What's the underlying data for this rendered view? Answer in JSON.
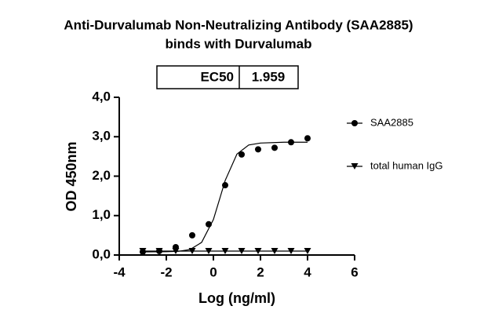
{
  "chart_data": {
    "type": "scatter",
    "title": [
      "Anti-Durvalumab Non-Neutralizing Antibody (SAA2885)",
      "binds with Durvalumab"
    ],
    "summary_table": {
      "header": "EC50",
      "value": "1.959"
    },
    "x_label": "Log (ng/ml)",
    "y_label": "OD 450nm",
    "xlim": [
      -4,
      6
    ],
    "xticks": [
      -4,
      -2,
      0,
      2,
      4,
      6
    ],
    "ylim": [
      0,
      4
    ],
    "yticks": [
      {
        "value": 0,
        "label": "0,0"
      },
      {
        "value": 1,
        "label": "1,0"
      },
      {
        "value": 2,
        "label": "2,0"
      },
      {
        "value": 3,
        "label": "3,0"
      },
      {
        "value": 4,
        "label": "4,0"
      }
    ],
    "series": [
      {
        "name": "SAA2885",
        "color": "#000000",
        "marker": "circle",
        "x": [
          -3.0,
          -2.3,
          -1.6,
          -0.9,
          -0.2,
          0.5,
          1.2,
          1.9,
          2.6,
          3.3,
          4.0
        ],
        "values": [
          0.08,
          0.1,
          0.2,
          0.5,
          0.78,
          1.77,
          2.55,
          2.68,
          2.72,
          2.86,
          2.96
        ],
        "fit": {
          "x": [
            -3,
            -2,
            -1.5,
            -1,
            -0.5,
            0,
            0.29,
            0.5,
            1,
            1.5,
            2,
            3,
            4
          ],
          "values": [
            0.08,
            0.083,
            0.093,
            0.137,
            0.32,
            0.9,
            1.47,
            1.89,
            2.56,
            2.79,
            2.84,
            2.86,
            2.86
          ]
        }
      },
      {
        "name": "total human IgG",
        "color": "#000000",
        "marker": "triangle-down",
        "x": [
          -3.0,
          -2.3,
          -1.6,
          -0.9,
          -0.2,
          0.5,
          1.2,
          1.9,
          2.6,
          3.3,
          4.0
        ],
        "values": [
          0.1,
          0.1,
          0.1,
          0.1,
          0.1,
          0.1,
          0.1,
          0.1,
          0.1,
          0.1,
          0.1
        ]
      }
    ]
  }
}
